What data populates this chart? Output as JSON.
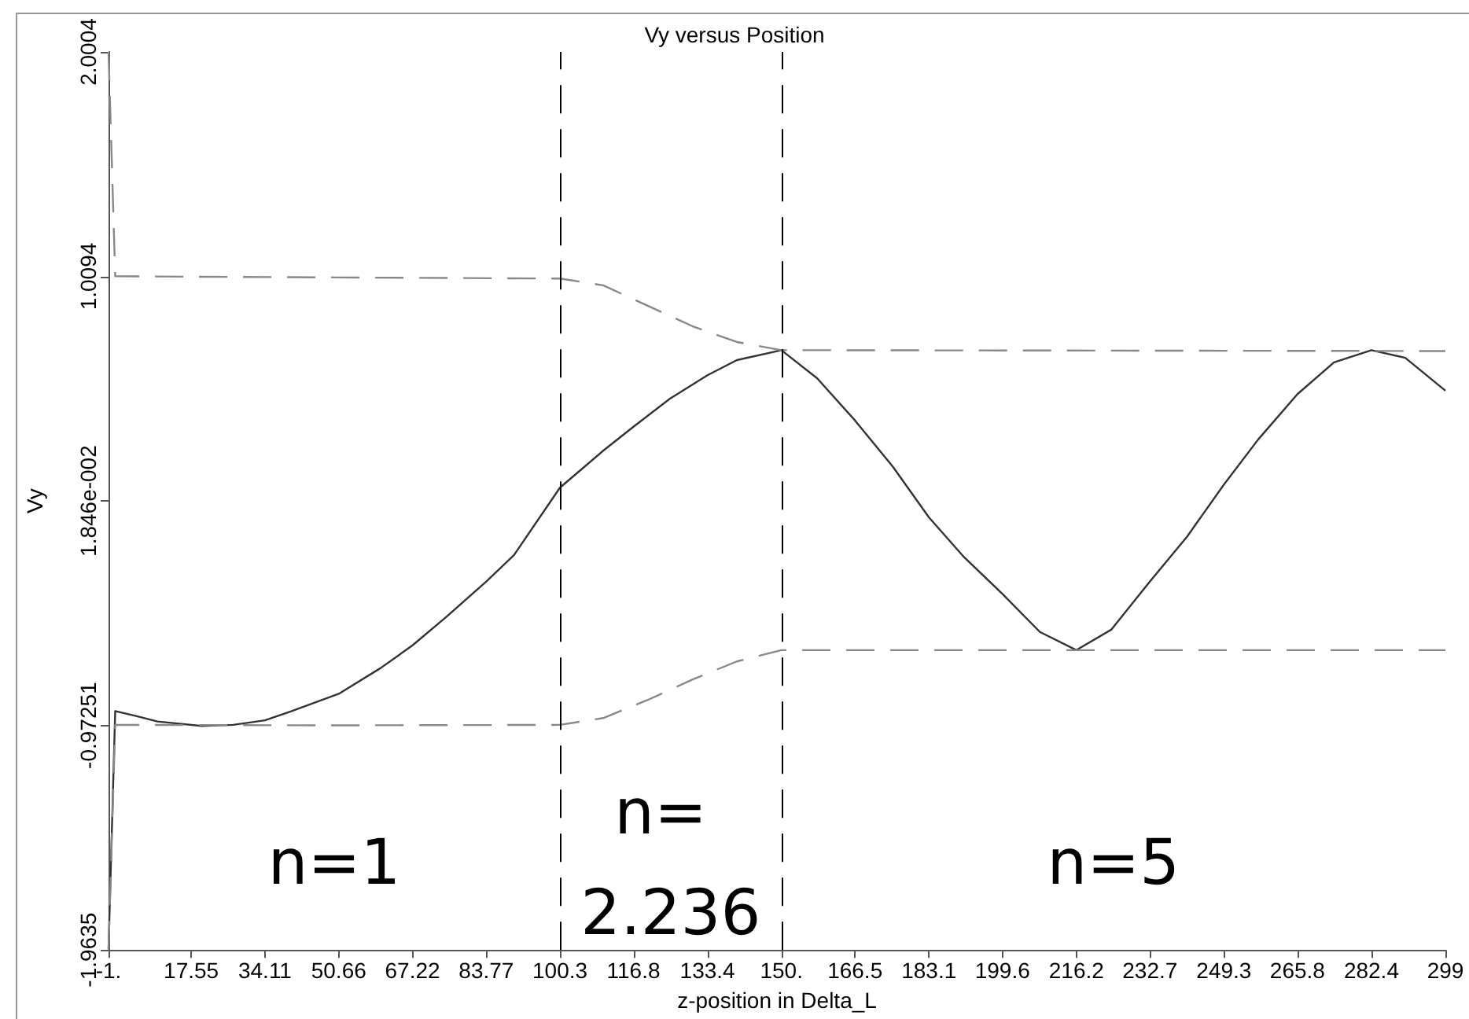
{
  "chart_data": {
    "type": "line",
    "title": "Vy versus Position",
    "xlabel": "z-position in Delta_L",
    "ylabel": "Vy",
    "xlim": [
      -1,
      299
    ],
    "xticks": [
      {
        "value": -1,
        "label": "-1."
      },
      17.55,
      34.11,
      50.66,
      67.22,
      83.77,
      100.3,
      116.8,
      133.4,
      {
        "value": 150,
        "label": "150."
      },
      166.5,
      183.1,
      199.6,
      216.2,
      232.7,
      249.3,
      265.8,
      282.4,
      299
    ],
    "ylim": [
      -1.9635,
      2.0004
    ],
    "yticks": [
      -1.9635,
      -0.97251,
      {
        "value": 0.01846,
        "label": "1.846e-002"
      },
      1.0094,
      2.0004
    ],
    "grid": false,
    "marker": "none",
    "series": [
      {
        "color": "#333333",
        "line_style": "solid",
        "x": [
          -1,
          0.5,
          5,
          10,
          20,
          27,
          34.11,
          40,
          50.66,
          60,
          67.22,
          75,
          83.77,
          90,
          100.3,
          110,
          116.8,
          125,
          133.4,
          140,
          150,
          158,
          166.5,
          175,
          183.1,
          191,
          199.6,
          208,
          216.2,
          224,
          232.7,
          241,
          249.3,
          257,
          265.8,
          274,
          282.4,
          290,
          299
        ],
        "values": [
          -1.96,
          -0.909,
          -0.93,
          -0.955,
          -0.975,
          -0.97,
          -0.95,
          -0.91,
          -0.833,
          -0.72,
          -0.619,
          -0.49,
          -0.337,
          -0.22,
          0.077,
          0.24,
          0.346,
          0.47,
          0.573,
          0.64,
          0.684,
          0.56,
          0.374,
          0.17,
          -0.054,
          -0.23,
          -0.392,
          -0.56,
          -0.64,
          -0.55,
          -0.337,
          -0.14,
          0.091,
          0.29,
          0.49,
          0.63,
          0.684,
          0.65,
          0.505
        ]
      },
      {
        "color": "#888888",
        "line_style": "dashed",
        "x": [
          -1,
          0.5,
          50,
          100.3,
          110,
          120,
          130,
          140,
          150,
          299
        ],
        "values": [
          2.0,
          1.01,
          1.005,
          1.0,
          0.97,
          0.88,
          0.79,
          0.72,
          0.684,
          0.68
        ]
      },
      {
        "color": "#888888",
        "line_style": "dashed",
        "x": [
          -1,
          0.5,
          50,
          100.3,
          110,
          120,
          130,
          140,
          150,
          299
        ],
        "values": [
          -1.96,
          -0.97,
          -0.972,
          -0.97,
          -0.94,
          -0.86,
          -0.77,
          -0.69,
          -0.64,
          -0.64
        ]
      }
    ],
    "ref_lines": [
      {
        "axis": "x",
        "value": 100.3,
        "color": "#000000",
        "line_style": "dashed"
      },
      {
        "axis": "x",
        "value": 150,
        "color": "#000000",
        "line_style": "dashed"
      }
    ],
    "annotations": [
      "n=1",
      "n= 2.236",
      "n=5"
    ]
  }
}
